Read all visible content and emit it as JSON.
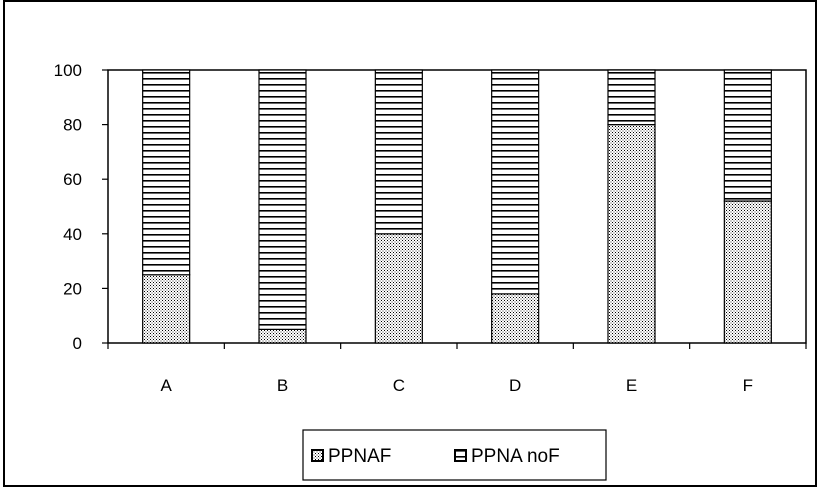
{
  "chart_data": {
    "type": "bar",
    "stacked": true,
    "categories": [
      "A",
      "B",
      "C",
      "D",
      "E",
      "F"
    ],
    "series": [
      {
        "name": "PPNAF",
        "values": [
          25,
          5,
          40,
          18,
          80,
          52
        ],
        "pattern": "dots"
      },
      {
        "name": "PPNA noF",
        "values": [
          75,
          95,
          60,
          82,
          20,
          48
        ],
        "pattern": "horizontal-lines"
      }
    ],
    "title": "",
    "xlabel": "",
    "ylabel": "",
    "ylim": [
      0,
      100
    ],
    "yticks": [
      0,
      20,
      40,
      60,
      80,
      100
    ],
    "grid": false,
    "legend_position": "bottom-center",
    "colors": {
      "bar_stroke": "#000000",
      "pattern_ink": "#000000",
      "background": "#ffffff"
    }
  }
}
